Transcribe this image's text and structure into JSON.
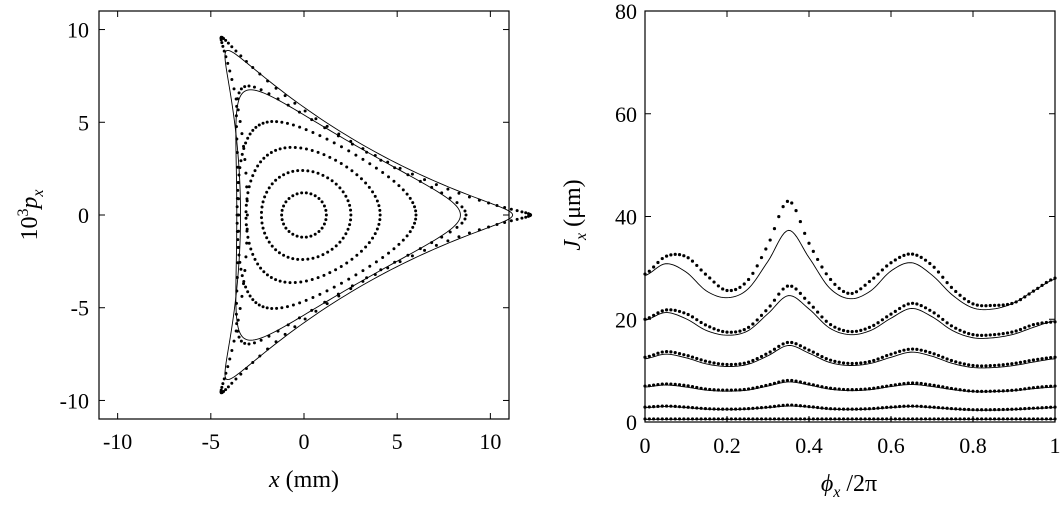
{
  "chart_data": [
    {
      "type": "scatter",
      "xlabel_var": "x",
      "xlabel_unit": "(mm)",
      "ylabel_prefix": "10",
      "ylabel_exp": "3",
      "ylabel_var": "p",
      "ylabel_sub": "x",
      "xlim": [
        -11,
        11
      ],
      "ylim": [
        -11,
        11
      ],
      "xticks": [
        -10,
        -5,
        0,
        5,
        10
      ],
      "xtick_labels": [
        "-10",
        "-5",
        "0",
        "5",
        "10"
      ],
      "yticks": [
        -10,
        -5,
        0,
        5,
        10
      ],
      "ytick_labels": [
        "-10",
        "-5",
        "0",
        "5",
        "10"
      ],
      "grid": false,
      "series": [
        {
          "kind": "dots",
          "r": 1.2,
          "shape_factor": 0.0,
          "dot_count": 30
        },
        {
          "kind": "dots",
          "r": 2.4,
          "shape_factor": 0.02,
          "dot_count": 55
        },
        {
          "kind": "dots",
          "r": 3.6,
          "shape_factor": 0.045,
          "dot_count": 75
        },
        {
          "kind": "dots",
          "r": 4.8,
          "shape_factor": 0.07,
          "dot_count": 90
        },
        {
          "kind": "line",
          "r": 6.0,
          "shape_factor": 0.095
        },
        {
          "kind": "dots",
          "r": 6.1,
          "shape_factor": 0.1,
          "dot_count": 70
        },
        {
          "kind": "line",
          "r": 7.3,
          "shape_factor": 0.11
        },
        {
          "kind": "dots",
          "r": 7.6,
          "shape_factor": 0.12,
          "dot_count": 120
        }
      ]
    },
    {
      "type": "line",
      "xlabel_var": "ϕ",
      "xlabel_sub": "x",
      "xlabel_tail": "/2π",
      "ylabel_var": "J",
      "ylabel_sub": "x",
      "ylabel_unit": "(μm)",
      "xlim": [
        0,
        1
      ],
      "ylim": [
        0,
        80
      ],
      "xticks": [
        0,
        0.2,
        0.4,
        0.6,
        0.8,
        1
      ],
      "xtick_labels": [
        "0",
        "0.2",
        "0.4",
        "0.6",
        "0.8",
        "1"
      ],
      "yticks": [
        0,
        20,
        40,
        60,
        80
      ],
      "ytick_labels": [
        "0",
        "20",
        "40",
        "60",
        "80"
      ],
      "grid": false,
      "x": [
        0,
        0.05,
        0.1,
        0.15,
        0.2,
        0.25,
        0.3,
        0.35,
        0.4,
        0.45,
        0.5,
        0.55,
        0.6,
        0.65,
        0.7,
        0.75,
        0.8,
        0.85,
        0.9,
        0.95,
        1
      ],
      "series": [
        {
          "name": "",
          "kind": "line",
          "values": [
            0.5,
            0.5,
            0.5,
            0.5,
            0.5,
            0.5,
            0.5,
            0.5,
            0.5,
            0.5,
            0.5,
            0.5,
            0.5,
            0.5,
            0.5,
            0.5,
            0.5,
            0.5,
            0.5,
            0.5,
            0.5
          ]
        },
        {
          "name": "",
          "kind": "dots",
          "values": [
            0.6,
            0.6,
            0.6,
            0.6,
            0.6,
            0.6,
            0.6,
            0.6,
            0.6,
            0.6,
            0.6,
            0.6,
            0.6,
            0.6,
            0.6,
            0.6,
            0.6,
            0.6,
            0.6,
            0.6,
            0.6
          ]
        },
        {
          "name": "",
          "kind": "line",
          "values": [
            2.8,
            3.0,
            2.8,
            2.5,
            2.4,
            2.5,
            2.8,
            3.1,
            2.9,
            2.5,
            2.4,
            2.5,
            2.8,
            3.0,
            2.8,
            2.5,
            2.3,
            2.3,
            2.4,
            2.6,
            2.8
          ]
        },
        {
          "name": "",
          "kind": "dots",
          "values": [
            2.9,
            3.1,
            2.9,
            2.6,
            2.5,
            2.6,
            2.9,
            3.3,
            3.0,
            2.6,
            2.5,
            2.6,
            2.9,
            3.1,
            2.9,
            2.6,
            2.4,
            2.4,
            2.5,
            2.7,
            2.9
          ]
        },
        {
          "name": "",
          "kind": "line",
          "values": [
            6.8,
            7.2,
            6.8,
            6.2,
            6.0,
            6.2,
            7.0,
            7.8,
            7.2,
            6.4,
            6.1,
            6.3,
            6.9,
            7.3,
            6.9,
            6.3,
            5.9,
            5.9,
            6.1,
            6.5,
            6.8
          ]
        },
        {
          "name": "",
          "kind": "dots",
          "values": [
            7.0,
            7.4,
            7.1,
            6.4,
            6.2,
            6.4,
            7.2,
            8.1,
            7.4,
            6.6,
            6.3,
            6.5,
            7.1,
            7.6,
            7.2,
            6.5,
            6.0,
            6.0,
            6.2,
            6.7,
            7.0
          ]
        },
        {
          "name": "",
          "kind": "line",
          "values": [
            12.3,
            13.2,
            12.5,
            11.3,
            10.8,
            11.2,
            12.9,
            14.9,
            13.4,
            11.6,
            11.0,
            11.4,
            12.6,
            13.6,
            12.8,
            11.4,
            10.6,
            10.6,
            11.0,
            11.7,
            12.3
          ]
        },
        {
          "name": "",
          "kind": "dots",
          "values": [
            12.6,
            13.7,
            13.0,
            11.8,
            11.2,
            11.6,
            13.4,
            15.5,
            14.0,
            12.1,
            11.4,
            11.8,
            13.2,
            14.2,
            13.4,
            11.9,
            11.0,
            11.0,
            11.4,
            12.1,
            12.6
          ]
        },
        {
          "name": "",
          "kind": "line",
          "values": [
            19.8,
            21.3,
            20.1,
            17.8,
            16.9,
            17.7,
            21.1,
            24.6,
            22.0,
            18.3,
            17.0,
            17.8,
            20.2,
            22.1,
            20.5,
            17.8,
            16.4,
            16.4,
            17.1,
            18.5,
            19.7
          ]
        },
        {
          "name": "",
          "kind": "dots",
          "values": [
            20.0,
            21.8,
            21.1,
            18.8,
            17.5,
            18.3,
            22.1,
            26.5,
            23.2,
            19.1,
            17.6,
            18.5,
            21.0,
            23.1,
            21.5,
            18.6,
            17.0,
            17.0,
            17.6,
            19.0,
            19.5
          ]
        },
        {
          "name": "",
          "kind": "line",
          "values": [
            28.5,
            30.8,
            29.2,
            25.5,
            24.2,
            25.8,
            31.3,
            37.3,
            32.0,
            26.1,
            24.0,
            25.5,
            29.4,
            31.0,
            28.6,
            24.7,
            22.2,
            22.0,
            23.2,
            25.6,
            27.8
          ]
        },
        {
          "name": "",
          "kind": "dots",
          "values": [
            28.8,
            32.2,
            32.2,
            28.6,
            25.6,
            27.5,
            34.5,
            43.0,
            34.8,
            28.0,
            25.0,
            27.5,
            31.0,
            32.7,
            30.5,
            26.0,
            23.0,
            22.7,
            23.2,
            25.6,
            28.0
          ]
        }
      ]
    }
  ]
}
